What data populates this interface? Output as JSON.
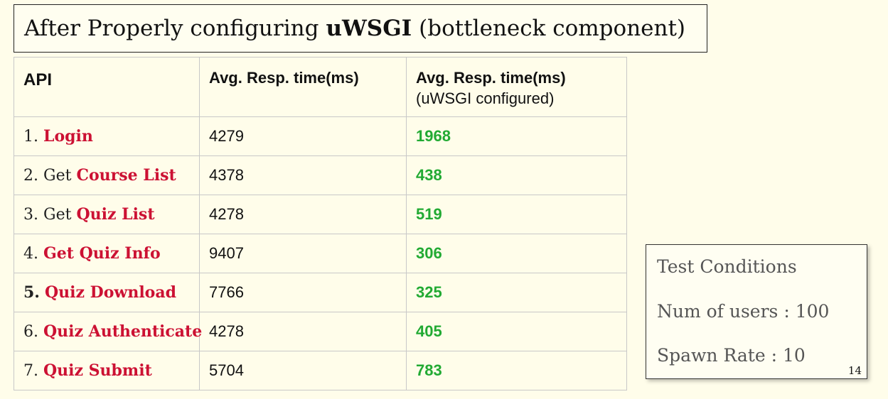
{
  "title": {
    "before": "After Properly configuring",
    "bold": "uWSGI",
    "after": "(bottleneck component)"
  },
  "table": {
    "headers": {
      "api": "API",
      "avg": "Avg. Resp. time(ms)",
      "avg_configured": "Avg. Resp. time(ms)",
      "avg_configured_sub": "(uWSGI configured)"
    },
    "rows": [
      {
        "num": "1.",
        "prefix": "",
        "name": "Login",
        "avg": "4279",
        "configured": "1968"
      },
      {
        "num": "2.",
        "prefix": "Get",
        "name": "Course List",
        "avg": "4378",
        "configured": "438"
      },
      {
        "num": "3.",
        "prefix": "Get",
        "name": "Quiz List",
        "avg": "4278",
        "configured": "519"
      },
      {
        "num": "4.",
        "prefix": "",
        "name": "Get Quiz Info",
        "avg": "9407",
        "configured": "306"
      },
      {
        "num": "5.",
        "prefix": "",
        "name": "Quiz Download",
        "avg": "7766",
        "configured": "325"
      },
      {
        "num": "6.",
        "prefix": "",
        "name": "Quiz Authenticate",
        "avg": "4278",
        "configured": "405"
      },
      {
        "num": "7.",
        "prefix": "",
        "name": "Quiz Submit",
        "avg": "5704",
        "configured": "783"
      }
    ]
  },
  "conditions": {
    "heading": "Test Conditions",
    "users": "Num of users : 100",
    "spawn_rate": "Spawn Rate : 10"
  },
  "page_number": "14",
  "colors": {
    "background": "#fffdea",
    "api_name": "#cc1133",
    "improved_value": "#22aa33"
  }
}
